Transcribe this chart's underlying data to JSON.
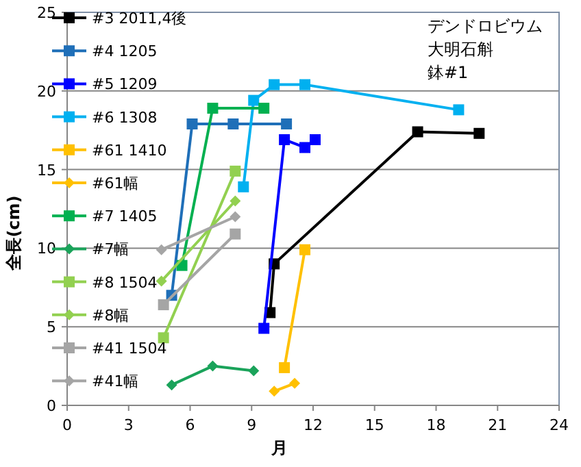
{
  "chart_data": {
    "type": "line",
    "xlabel": "月",
    "ylabel": "全長(cm)",
    "annotations": [
      "デンドロビウム",
      "大明石斛",
      "鉢#1"
    ],
    "xlim": [
      0,
      24
    ],
    "xticks": [
      0,
      3,
      6,
      9,
      12,
      15,
      18,
      21,
      24
    ],
    "ylim": [
      0,
      25
    ],
    "yticks": [
      0,
      5,
      10,
      15,
      20,
      25
    ],
    "grid": "y",
    "legend": "top left",
    "line_style": "solid",
    "series": [
      {
        "name": "#3 2011,4後",
        "color": "#000000",
        "marker": "square",
        "x": [
          9.9,
          10.1,
          17.1,
          20.1
        ],
        "values": [
          5.9,
          9.0,
          17.4,
          17.3
        ]
      },
      {
        "name": "#4 1205",
        "color": "#1f6fb8",
        "marker": "square",
        "x": [
          5.1,
          6.1,
          8.1,
          10.7
        ],
        "values": [
          7.0,
          17.9,
          17.9,
          17.9
        ]
      },
      {
        "name": "#5 1209",
        "color": "#0000ff",
        "marker": "square",
        "x": [
          9.6,
          10.6,
          11.6,
          12.1
        ],
        "values": [
          4.9,
          16.9,
          16.4,
          16.9
        ]
      },
      {
        "name": "#6 1308",
        "color": "#00b0f0",
        "marker": "square",
        "x": [
          8.6,
          9.1,
          10.1,
          11.6,
          19.1
        ],
        "values": [
          13.9,
          19.4,
          20.4,
          20.4,
          18.8
        ]
      },
      {
        "name": "#61 1410",
        "color": "#ffc000",
        "marker": "square",
        "x": [
          10.6,
          11.6
        ],
        "values": [
          2.4,
          9.9
        ]
      },
      {
        "name": "#61幅",
        "color": "#ffc000",
        "marker": "diamond",
        "x": [
          10.1,
          11.1
        ],
        "values": [
          0.9,
          1.4
        ]
      },
      {
        "name": "#7 1405",
        "color": "#00b050",
        "marker": "square",
        "x": [
          5.6,
          7.1,
          9.6
        ],
        "values": [
          8.9,
          18.9,
          18.9
        ]
      },
      {
        "name": "#7幅",
        "color": "#1aa35a",
        "marker": "diamond",
        "x": [
          5.1,
          7.1,
          9.1
        ],
        "values": [
          1.3,
          2.5,
          2.2
        ]
      },
      {
        "name": "#8 1504",
        "color": "#92d050",
        "marker": "square",
        "x": [
          4.7,
          8.2
        ],
        "values": [
          4.3,
          14.9
        ]
      },
      {
        "name": "#8幅",
        "color": "#92d050",
        "marker": "diamond",
        "x": [
          4.6,
          8.2
        ],
        "values": [
          7.9,
          13.0
        ]
      },
      {
        "name": "#41 1504",
        "color": "#a5a5a5",
        "marker": "square",
        "x": [
          4.7,
          8.2
        ],
        "values": [
          6.4,
          10.9
        ]
      },
      {
        "name": "#41幅",
        "color": "#a5a5a5",
        "marker": "diamond",
        "x": [
          4.6,
          8.2
        ],
        "values": [
          9.9,
          12.0
        ]
      }
    ]
  }
}
